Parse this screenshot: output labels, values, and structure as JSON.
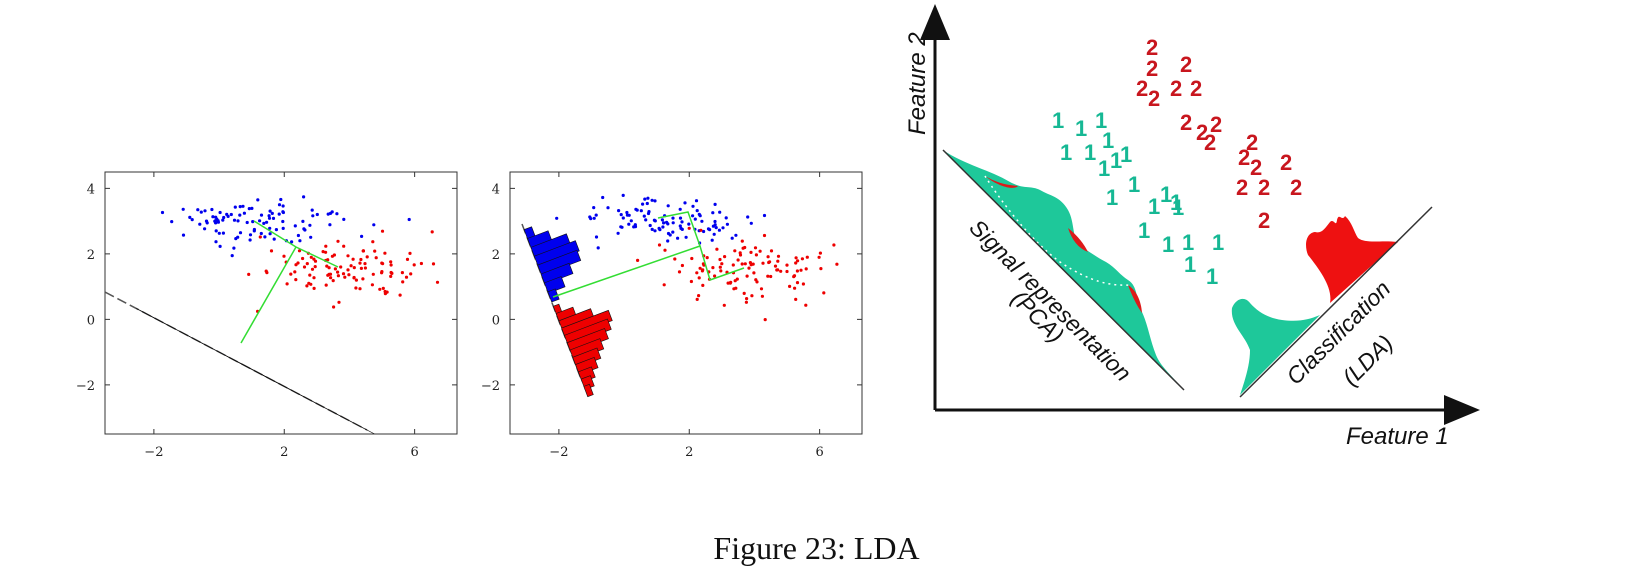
{
  "caption": "Figure 23: LDA",
  "colors": {
    "class1": "#0000ee",
    "class2": "#ee0000",
    "line": "#33dd33",
    "teal": "#1ec89a",
    "red_digit": "#c8161e",
    "teal_digit": "#16b894"
  },
  "chart_data": [
    {
      "type": "scatter",
      "title": "",
      "xlabel": "",
      "ylabel": "",
      "xlim": [
        -3.5,
        7.3
      ],
      "ylim": [
        -3.5,
        4.5
      ],
      "xticks": [
        "−2",
        "2",
        "6"
      ],
      "yticks": [
        "4",
        "2",
        "0",
        "−2"
      ],
      "xtick_values": [
        -2,
        2,
        6
      ],
      "ytick_values": [
        4,
        2,
        0,
        -2
      ],
      "series": [
        {
          "color": "blue",
          "center": [
            1,
            3
          ],
          "spread": [
            1.3,
            0.35
          ],
          "count": 100
        },
        {
          "color": "red",
          "center": [
            3.8,
            1.5
          ],
          "spread": [
            1.3,
            0.5
          ],
          "count": 110
        }
      ],
      "projection": "histograms on a line of slope about −0.5"
    },
    {
      "type": "scatter",
      "title": "",
      "xlabel": "",
      "ylabel": "",
      "xlim": [
        -3.5,
        7.3
      ],
      "ylim": [
        -3.5,
        4.5
      ],
      "xticks": [
        "−2",
        "2",
        "6"
      ],
      "yticks": [
        "4",
        "2",
        "0",
        "−2"
      ],
      "xtick_values": [
        -2,
        2,
        6
      ],
      "ytick_values": [
        4,
        2,
        0,
        -2
      ],
      "series": [
        {
          "color": "blue",
          "center": [
            1,
            3
          ],
          "spread": [
            1.3,
            0.35
          ],
          "count": 100
        },
        {
          "color": "red",
          "center": [
            3.8,
            1.5
          ],
          "spread": [
            1.3,
            0.5
          ],
          "count": 110
        }
      ],
      "projection": "histograms on a near-vertical line"
    }
  ],
  "diagram": {
    "y_axis_label": "Feature 2",
    "x_axis_label": "Feature 1",
    "pca_label_line1": "Signal representation",
    "pca_label_line2": "(PCA)",
    "lda_label_line1": "Classification",
    "lda_label_line2": "(LDA)",
    "class1_digit": "1",
    "class2_digit": "2"
  }
}
